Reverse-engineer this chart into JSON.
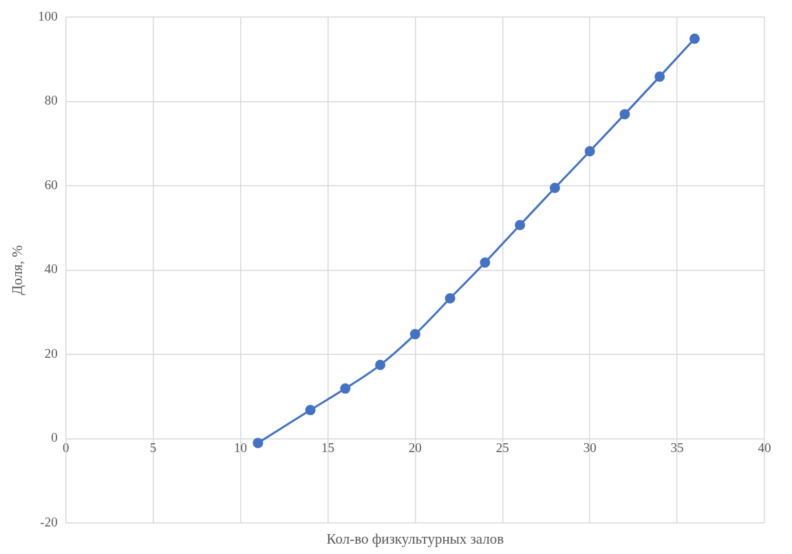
{
  "chart_data": {
    "type": "line",
    "xlabel": "Кол-во физкультурных залов",
    "ylabel": "Доля, %",
    "x": [
      11,
      14,
      16,
      18,
      20,
      22,
      24,
      26,
      28,
      30,
      32,
      34,
      36
    ],
    "series": [
      {
        "color": "#4472c4",
        "values": [
          -1,
          6.8,
          11.9,
          17.5,
          24.8,
          33.3,
          41.8,
          50.7,
          59.5,
          68.2,
          77.0,
          85.9,
          94.9
        ]
      }
    ],
    "xlim": [
      0,
      40
    ],
    "xticks": [
      0,
      5,
      10,
      15,
      20,
      25,
      30,
      35,
      40
    ],
    "ylim": [
      -20,
      100
    ],
    "yticks": [
      -20,
      0,
      20,
      40,
      60,
      80,
      100
    ],
    "grid": true,
    "legend": false,
    "marker": "circle",
    "line_style": "solid"
  }
}
